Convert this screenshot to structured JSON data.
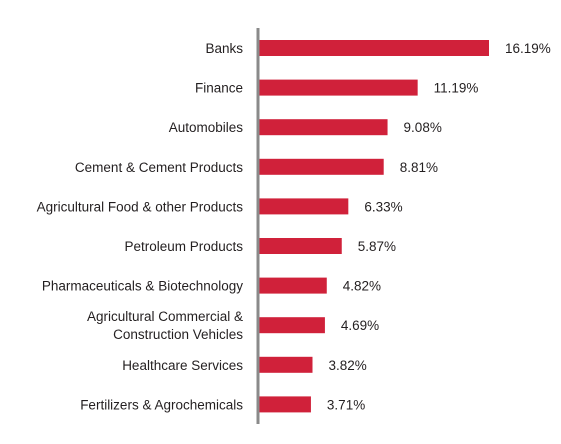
{
  "chart_data": {
    "type": "bar",
    "orientation": "horizontal",
    "categories": [
      [
        "Banks"
      ],
      [
        "Finance"
      ],
      [
        "Automobiles"
      ],
      [
        "Cement & Cement Products"
      ],
      [
        "Agricultural Food & other Products"
      ],
      [
        "Petroleum Products"
      ],
      [
        "Pharmaceuticals & Biotechnology"
      ],
      [
        "Agricultural Commercial &",
        "Construction Vehicles"
      ],
      [
        "Healthcare Services"
      ],
      [
        "Fertilizers & Agrochemicals"
      ]
    ],
    "values": [
      16.19,
      11.19,
      9.08,
      8.81,
      6.33,
      5.87,
      4.82,
      4.69,
      3.82,
      3.71
    ],
    "value_labels": [
      "16.19%",
      "11.19%",
      "9.08%",
      "8.81%",
      "6.33%",
      "5.87%",
      "4.82%",
      "4.69%",
      "3.82%",
      "3.71%"
    ],
    "xlim": [
      0,
      16.19
    ],
    "grid": false,
    "legend": "none",
    "bar_color": "#d0213a",
    "axis_color": "#8a8a8a"
  }
}
